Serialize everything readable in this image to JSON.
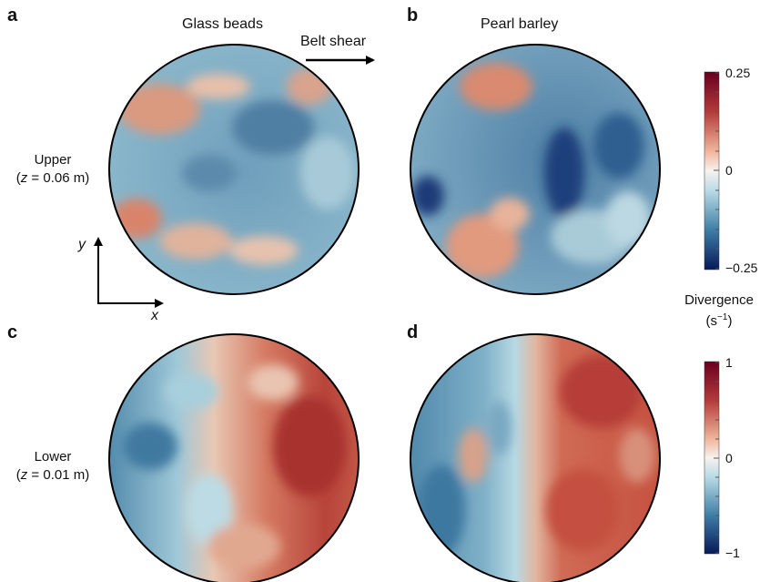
{
  "panels": {
    "a": "a",
    "b": "b",
    "c": "c",
    "d": "d"
  },
  "columns": {
    "glass": "Glass beads",
    "barley": "Pearl barley"
  },
  "shear": {
    "label": "Belt shear"
  },
  "rows": {
    "upper": {
      "name": "Upper",
      "pre": "(",
      "var": "z",
      "post": " = 0.06 m)"
    },
    "lower": {
      "name": "Lower",
      "pre": "(",
      "var": "z",
      "post": " = 0.01 m)"
    }
  },
  "axes": {
    "y": "y",
    "x": "x"
  },
  "colorbar": {
    "title": "Divergence",
    "unit_pre": "(s",
    "unit_sup": "−1",
    "unit_post": ")",
    "upper": {
      "max": "0.25",
      "mid": "0",
      "min": "−0.25"
    },
    "lower": {
      "max": "1",
      "mid": "0",
      "min": "−1"
    }
  },
  "colors": {
    "dark_red": "#67001f",
    "red": "#c44a3f",
    "light_red": "#f0b49a",
    "white": "#f7f2ee",
    "light_blue": "#b9dbe6",
    "blue": "#4a86a8",
    "dark_blue": "#0a2a66"
  }
}
